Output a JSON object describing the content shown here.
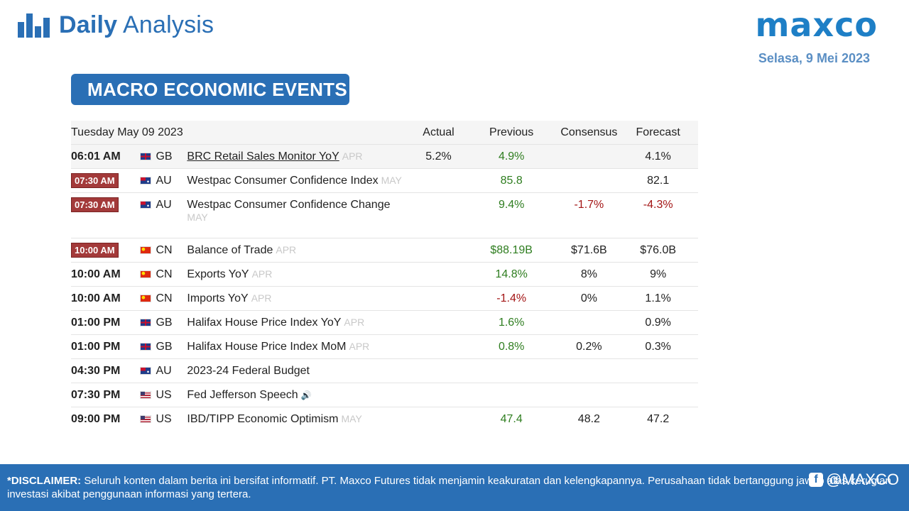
{
  "header": {
    "title_bold": "Daily",
    "title_light": "Analysis",
    "brand": "maxco",
    "date": "Selasa, 9 Mei 2023"
  },
  "section_title": "MACRO ECONOMIC EVENTS",
  "table": {
    "headers": {
      "date": "Tuesday May 09 2023",
      "actual": "Actual",
      "previous": "Previous",
      "consensus": "Consensus",
      "forecast": "Forecast"
    },
    "rows": [
      {
        "time": "06:01 AM",
        "country": "GB",
        "event": "BRC Retail Sales Monitor YoY",
        "period": "APR",
        "actual": "5.2%",
        "previous": "4.9%",
        "consensus": "",
        "forecast": "4.1%"
      },
      {
        "time": "07:30 AM",
        "country": "AU",
        "event": "Westpac Consumer Confidence Index",
        "period": "MAY",
        "actual": "",
        "previous": "85.8",
        "consensus": "",
        "forecast": "82.1"
      },
      {
        "time": "07:30 AM",
        "country": "AU",
        "event": "Westpac Consumer Confidence Change",
        "period": "MAY",
        "actual": "",
        "previous": "9.4%",
        "consensus": "-1.7%",
        "forecast": "-4.3%"
      },
      {
        "time": "10:00 AM",
        "country": "CN",
        "event": "Balance of Trade",
        "period": "APR",
        "actual": "",
        "previous": "$88.19B",
        "consensus": "$71.6B",
        "forecast": "$76.0B"
      },
      {
        "time": "10:00 AM",
        "country": "CN",
        "event": "Exports YoY",
        "period": "APR",
        "actual": "",
        "previous": "14.8%",
        "consensus": "8%",
        "forecast": "9%"
      },
      {
        "time": "10:00 AM",
        "country": "CN",
        "event": "Imports YoY",
        "period": "APR",
        "actual": "",
        "previous": "-1.4%",
        "consensus": "0%",
        "forecast": "1.1%"
      },
      {
        "time": "01:00 PM",
        "country": "GB",
        "event": "Halifax House Price Index YoY",
        "period": "APR",
        "actual": "",
        "previous": "1.6%",
        "consensus": "",
        "forecast": "0.9%"
      },
      {
        "time": "01:00 PM",
        "country": "GB",
        "event": "Halifax House Price Index MoM",
        "period": "APR",
        "actual": "",
        "previous": "0.8%",
        "consensus": "0.2%",
        "forecast": "0.3%"
      },
      {
        "time": "04:30 PM",
        "country": "AU",
        "event": "2023-24 Federal Budget",
        "period": "",
        "actual": "",
        "previous": "",
        "consensus": "",
        "forecast": ""
      },
      {
        "time": "07:30 PM",
        "country": "US",
        "event": "Fed Jefferson Speech",
        "period": "",
        "actual": "",
        "previous": "",
        "consensus": "",
        "forecast": ""
      },
      {
        "time": "09:00 PM",
        "country": "US",
        "event": "IBD/TIPP Economic Optimism",
        "period": "MAY",
        "actual": "",
        "previous": "47.4",
        "consensus": "48.2",
        "forecast": "47.2"
      }
    ]
  },
  "footer": {
    "disclaimer_label": "*DISCLAIMER:",
    "disclaimer_text": " Seluruh konten dalam berita ini bersifat informatif. PT. Maxco Futures tidak menjamin keakuratan dan kelengkapannya. Perusahaan tidak bertanggung jawab atas kerugian investasi akibat penggunaan informasi yang tertera.",
    "social_handle": "@MAXCO"
  },
  "colors": {
    "brand_blue": "#2a6fb5",
    "badge_red": "#a33a3a",
    "positive_green": "#2e7d1f",
    "negative_red": "#a31515"
  }
}
